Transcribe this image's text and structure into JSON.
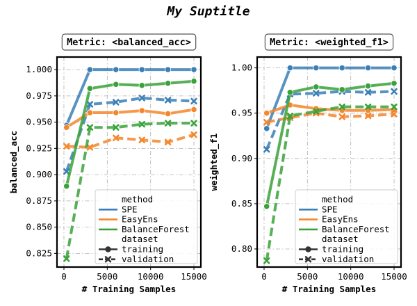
{
  "suptitle": "My Suptitle",
  "xlabel": "# Training Samples",
  "legend": {
    "hue_title": "method",
    "style_title": "dataset",
    "methods": [
      "SPE",
      "EasyEns",
      "BalanceForest"
    ],
    "datasets": [
      "training",
      "validation"
    ]
  },
  "colors": {
    "SPE": "#3b7fb6",
    "EasyEns": "#f5862c",
    "BalanceForest": "#3aa23a"
  },
  "chart_data": [
    {
      "type": "line",
      "title": "Metric: <balanced_acc>",
      "xlabel": "# Training Samples",
      "ylabel": "balanced_acc",
      "xlim": [
        -800,
        15800
      ],
      "ylim": [
        0.812,
        1.012
      ],
      "xticks": [
        0,
        5000,
        10000,
        15000
      ],
      "yticks": [
        0.825,
        0.85,
        0.875,
        0.9,
        0.925,
        0.95,
        0.975,
        1.0
      ],
      "ytick_labels": [
        "0.825",
        "0.850",
        "0.875",
        "0.900",
        "0.925",
        "0.950",
        "0.975",
        "1.000"
      ],
      "grid": true,
      "legend_position": "lower-right",
      "x": [
        300,
        3000,
        6000,
        9000,
        12000,
        15000
      ],
      "series": [
        {
          "method": "SPE",
          "dataset": "training",
          "values": [
            0.947,
            1.0,
            1.0,
            1.0,
            1.0,
            1.0
          ]
        },
        {
          "method": "SPE",
          "dataset": "validation",
          "values": [
            0.903,
            0.967,
            0.969,
            0.973,
            0.971,
            0.97
          ]
        },
        {
          "method": "EasyEns",
          "dataset": "training",
          "values": [
            0.945,
            0.959,
            0.959,
            0.961,
            0.958,
            0.962
          ]
        },
        {
          "method": "EasyEns",
          "dataset": "validation",
          "values": [
            0.927,
            0.926,
            0.935,
            0.933,
            0.931,
            0.938
          ]
        },
        {
          "method": "BalanceForest",
          "dataset": "training",
          "values": [
            0.889,
            0.982,
            0.986,
            0.985,
            0.987,
            0.989
          ]
        },
        {
          "method": "BalanceForest",
          "dataset": "validation",
          "values": [
            0.82,
            0.945,
            0.945,
            0.948,
            0.949,
            0.949
          ]
        }
      ]
    },
    {
      "type": "line",
      "title": "Metric: <weighted_f1>",
      "xlabel": "# Training Samples",
      "ylabel": "weighted_f1",
      "xlim": [
        -800,
        15800
      ],
      "ylim": [
        0.78,
        1.012
      ],
      "xticks": [
        0,
        5000,
        10000,
        15000
      ],
      "yticks": [
        0.8,
        0.85,
        0.9,
        0.95,
        1.0
      ],
      "ytick_labels": [
        "0.80",
        "0.85",
        "0.90",
        "0.95",
        "1.00"
      ],
      "grid": true,
      "legend_position": "lower-right",
      "x": [
        300,
        3000,
        6000,
        9000,
        12000,
        15000
      ],
      "series": [
        {
          "method": "SPE",
          "dataset": "training",
          "values": [
            0.933,
            1.0,
            1.0,
            1.0,
            1.0,
            1.0
          ]
        },
        {
          "method": "SPE",
          "dataset": "validation",
          "values": [
            0.91,
            0.971,
            0.972,
            0.974,
            0.973,
            0.974
          ]
        },
        {
          "method": "EasyEns",
          "dataset": "training",
          "values": [
            0.95,
            0.959,
            0.955,
            0.953,
            0.953,
            0.954
          ]
        },
        {
          "method": "EasyEns",
          "dataset": "validation",
          "values": [
            0.94,
            0.945,
            0.95,
            0.946,
            0.947,
            0.949
          ]
        },
        {
          "method": "BalanceForest",
          "dataset": "training",
          "values": [
            0.847,
            0.973,
            0.979,
            0.976,
            0.98,
            0.983
          ]
        },
        {
          "method": "BalanceForest",
          "dataset": "validation",
          "values": [
            0.787,
            0.947,
            0.952,
            0.957,
            0.957,
            0.957
          ]
        }
      ]
    }
  ]
}
